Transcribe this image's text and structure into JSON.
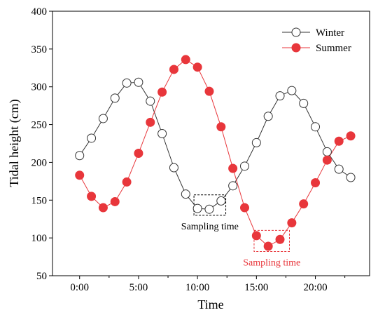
{
  "chart_data": {
    "type": "line",
    "xlabel": "Time",
    "ylabel": "Tidal height (cm)",
    "xlim": [
      -2.3,
      24.6
    ],
    "ylim": [
      50,
      400
    ],
    "x_ticks": [
      0,
      5,
      10,
      15,
      20
    ],
    "x_tick_labels": [
      "0:00",
      "5:00",
      "10:00",
      "15:00",
      "20:00"
    ],
    "y_ticks": [
      50,
      100,
      150,
      200,
      250,
      300,
      350,
      400
    ],
    "legend_position": "top-right",
    "x": [
      0,
      1,
      2,
      3,
      4,
      5,
      6,
      7,
      8,
      9,
      10,
      11,
      12,
      13,
      14,
      15,
      16,
      17,
      18,
      19,
      20,
      21,
      22,
      23
    ],
    "series": [
      {
        "name": "Winter",
        "color": "#333333",
        "marker": "open-circle",
        "values": [
          209,
          232,
          258,
          285,
          305,
          306,
          281,
          238,
          193,
          158,
          139,
          138,
          149,
          169,
          195,
          226,
          261,
          288,
          295,
          278,
          247,
          214,
          191,
          180
        ]
      },
      {
        "name": "Summer",
        "color": "#e8363b",
        "marker": "filled-circle",
        "values": [
          183,
          155,
          140,
          148,
          174,
          212,
          253,
          293,
          323,
          336,
          326,
          294,
          247,
          192,
          140,
          103,
          89,
          98,
          120,
          145,
          173,
          203,
          228,
          235
        ]
      }
    ],
    "annotations": [
      {
        "text": "Sampling time",
        "color": "#000000",
        "x_range": [
          9.7,
          12.4
        ],
        "y_range": [
          130,
          157
        ]
      },
      {
        "text": "Sampling time",
        "color": "#e8363b",
        "x_range": [
          14.8,
          17.8
        ],
        "y_range": [
          82,
          110
        ]
      }
    ]
  }
}
